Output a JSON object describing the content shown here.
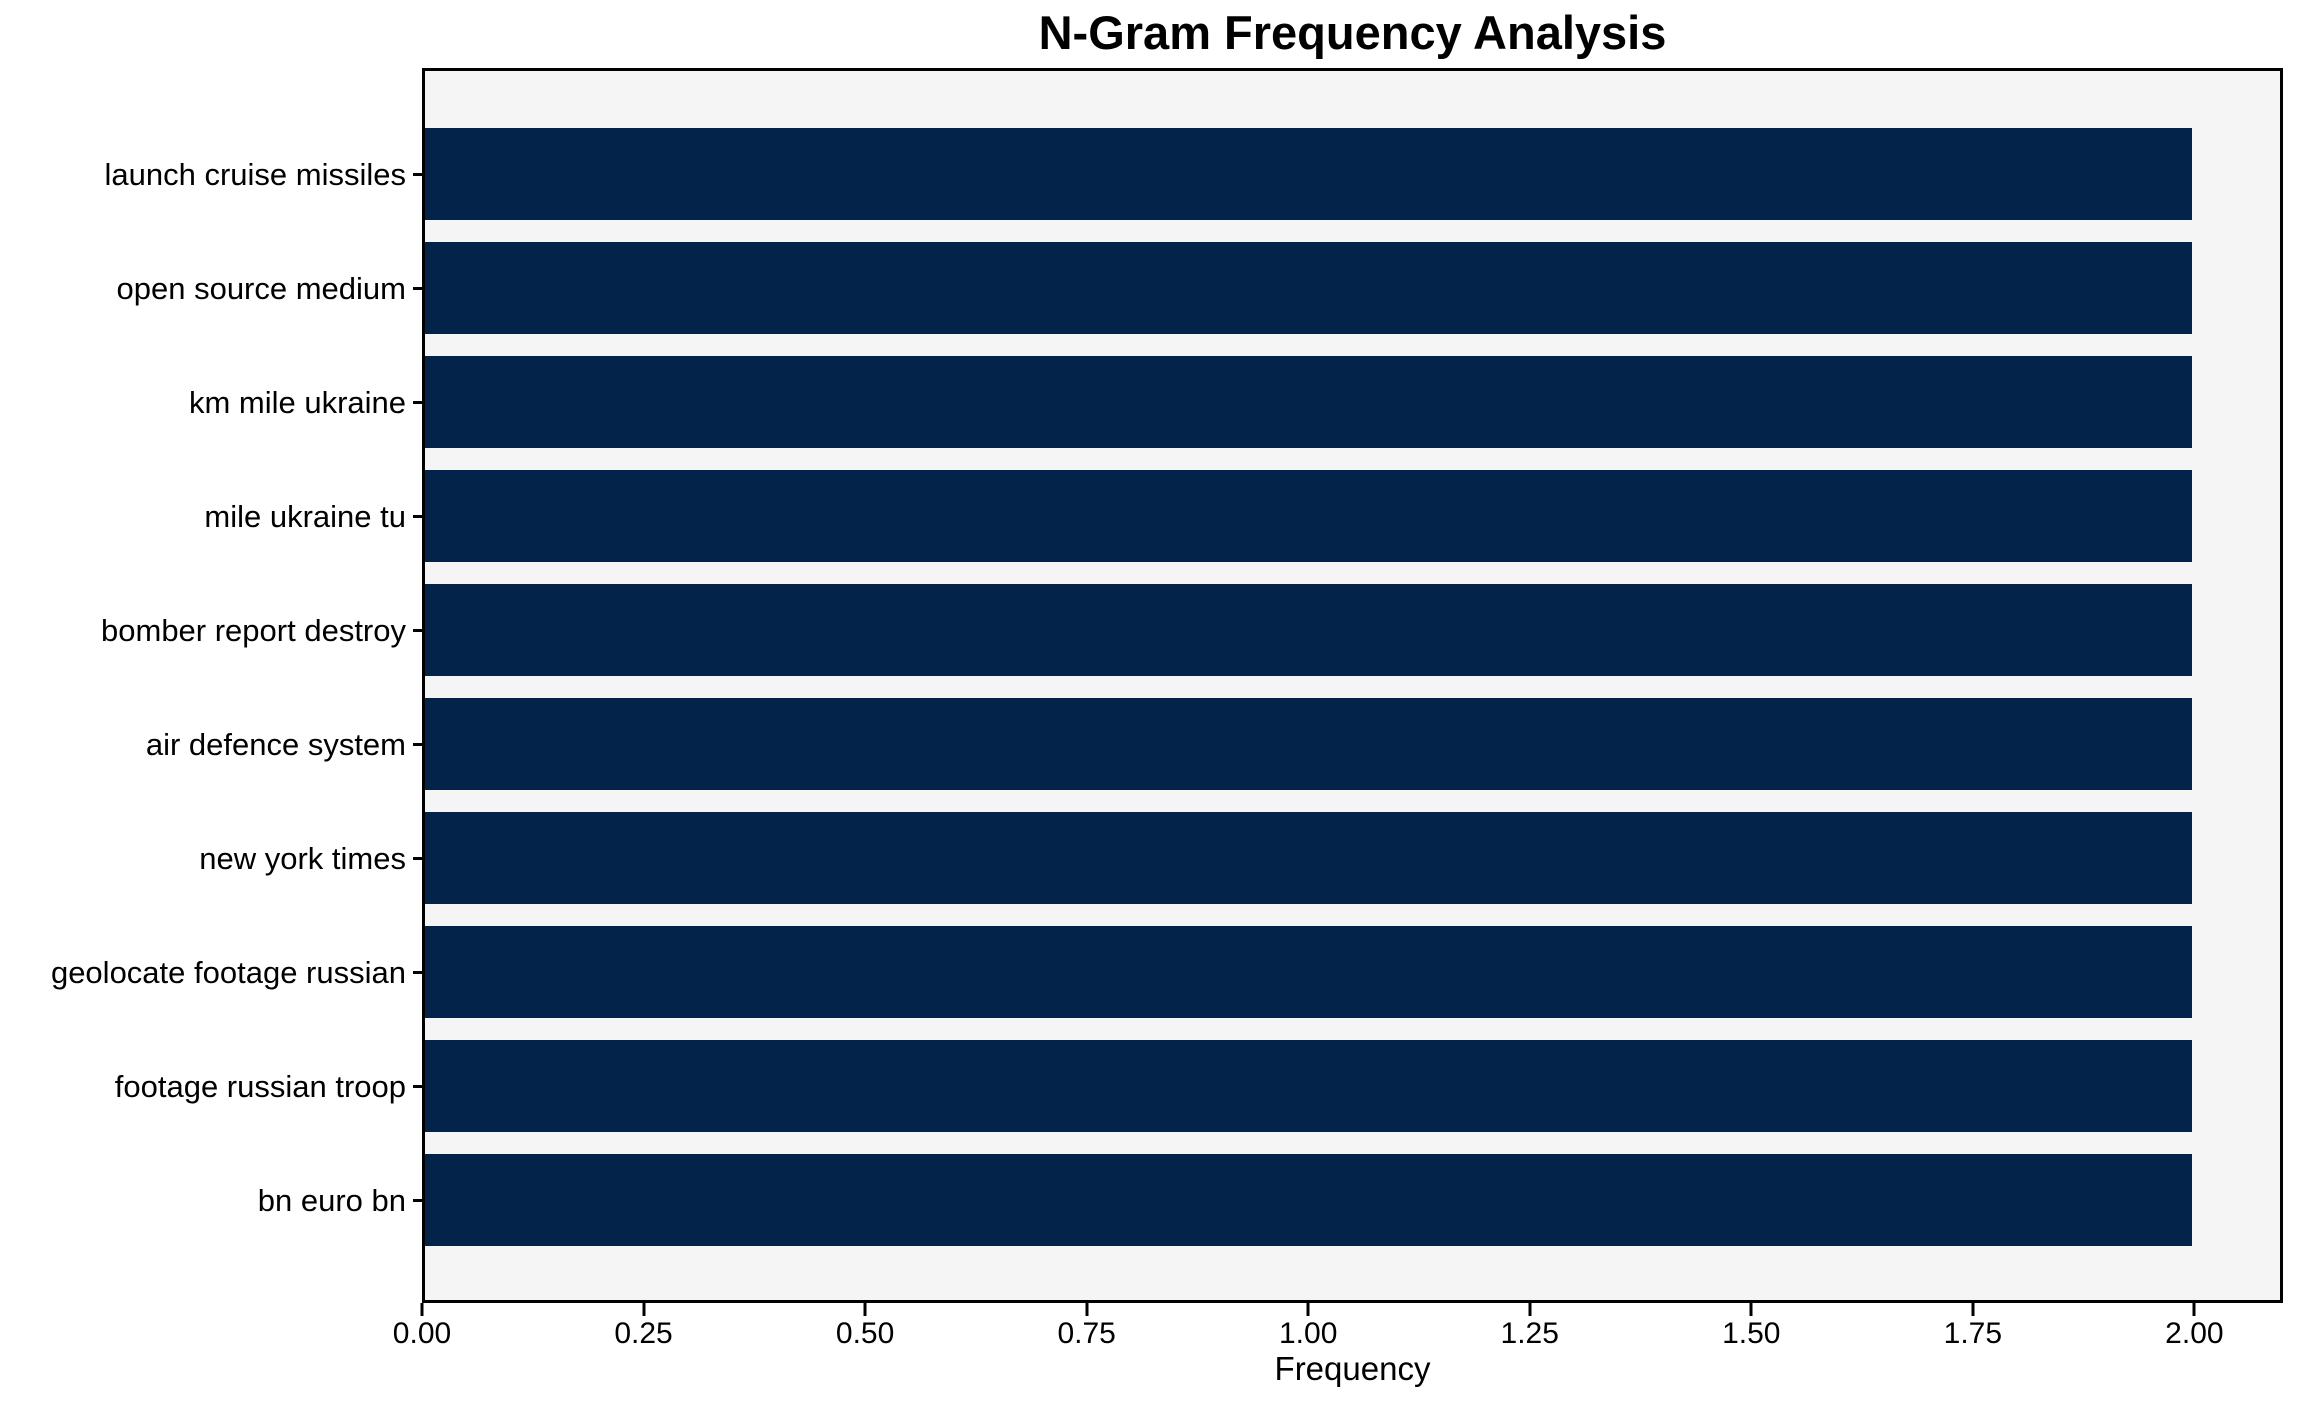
{
  "chart_data": {
    "type": "bar",
    "orientation": "horizontal",
    "title": "N-Gram Frequency Analysis",
    "xlabel": "Frequency",
    "ylabel": "",
    "categories": [
      "launch cruise missiles",
      "open source medium",
      "km mile ukraine",
      "mile ukraine tu",
      "bomber report destroy",
      "air defence system",
      "new york times",
      "geolocate footage russian",
      "footage russian troop",
      "bn euro bn"
    ],
    "values": [
      2,
      2,
      2,
      2,
      2,
      2,
      2,
      2,
      2,
      2
    ],
    "x_ticks": [
      "0.00",
      "0.25",
      "0.50",
      "0.75",
      "1.00",
      "1.25",
      "1.50",
      "1.75",
      "2.00"
    ],
    "xlim": [
      0,
      2.1
    ],
    "grid": false,
    "legend": null,
    "colors": {
      "bar": "#03234b",
      "plot_bg": "#f5f5f6",
      "figure_bg": "#ffffff",
      "spine": "#000000",
      "text": "#000000"
    }
  }
}
